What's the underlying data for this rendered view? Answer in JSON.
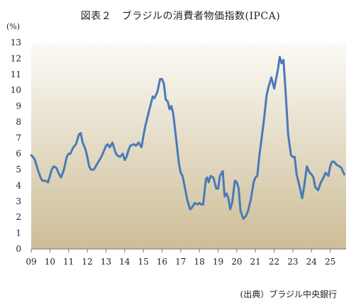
{
  "chart_data": {
    "type": "line",
    "title": "図表２　ブラジルの消費者物価指数(IPCA)",
    "ylabel": "(%)",
    "xlabel": "",
    "ylim": [
      0,
      13
    ],
    "yticks": [
      0,
      1,
      2,
      3,
      4,
      5,
      6,
      7,
      8,
      9,
      10,
      11,
      12,
      13
    ],
    "xticks": [
      "09",
      "10",
      "11",
      "12",
      "13",
      "14",
      "15",
      "16",
      "17",
      "18",
      "19",
      "20",
      "21",
      "22",
      "23",
      "24",
      "25"
    ],
    "grid": false,
    "legend": "none",
    "line_color": "#4a7ab8",
    "background_gradient": [
      "#fbfaf6",
      "#cdbd96"
    ],
    "series": [
      {
        "x": [
          2009.0,
          2009.1,
          2009.2,
          2009.35,
          2009.5,
          2009.6,
          2009.75,
          2009.9,
          2010.0,
          2010.1,
          2010.2,
          2010.35,
          2010.5,
          2010.6,
          2010.75,
          2010.9,
          2011.0,
          2011.1,
          2011.25,
          2011.4,
          2011.55,
          2011.65,
          2011.75,
          2011.9,
          2012.0,
          2012.1,
          2012.2,
          2012.35,
          2012.5,
          2012.6,
          2012.75,
          2012.9,
          2013.0,
          2013.1,
          2013.2,
          2013.35,
          2013.5,
          2013.6,
          2013.75,
          2013.9,
          2014.0,
          2014.1,
          2014.2,
          2014.3,
          2014.5,
          2014.6,
          2014.75,
          2014.9,
          2015.0,
          2015.1,
          2015.2,
          2015.35,
          2015.5,
          2015.6,
          2015.75,
          2015.9,
          2016.0,
          2016.1,
          2016.2,
          2016.3,
          2016.4,
          2016.5,
          2016.6,
          2016.75,
          2016.9,
          2017.0,
          2017.1,
          2017.2,
          2017.35,
          2017.5,
          2017.6,
          2017.75,
          2017.9,
          2018.0,
          2018.1,
          2018.2,
          2018.35,
          2018.42,
          2018.5,
          2018.6,
          2018.75,
          2018.9,
          2019.0,
          2019.1,
          2019.25,
          2019.35,
          2019.45,
          2019.55,
          2019.65,
          2019.75,
          2019.9,
          2020.0,
          2020.1,
          2020.2,
          2020.35,
          2020.5,
          2020.6,
          2020.75,
          2020.9,
          2021.0,
          2021.1,
          2021.2,
          2021.3,
          2021.45,
          2021.6,
          2021.7,
          2021.85,
          2022.0,
          2022.1,
          2022.2,
          2022.3,
          2022.4,
          2022.5,
          2022.6,
          2022.75,
          2022.9,
          2023.0,
          2023.1,
          2023.2,
          2023.35,
          2023.5,
          2023.6,
          2023.75,
          2023.9,
          2024.0,
          2024.1,
          2024.2,
          2024.35,
          2024.5,
          2024.6,
          2024.75,
          2024.9,
          2025.0,
          2025.1,
          2025.2,
          2025.35,
          2025.5,
          2025.6,
          2025.75
        ],
        "y": [
          5.9,
          5.8,
          5.6,
          5.0,
          4.5,
          4.3,
          4.3,
          4.2,
          4.6,
          5.0,
          5.2,
          5.1,
          4.7,
          4.5,
          5.0,
          5.8,
          6.0,
          6.0,
          6.4,
          6.6,
          7.2,
          7.3,
          6.7,
          6.3,
          5.8,
          5.2,
          5.0,
          5.0,
          5.3,
          5.5,
          5.8,
          6.2,
          6.5,
          6.6,
          6.4,
          6.7,
          6.1,
          5.9,
          5.8,
          6.0,
          5.6,
          5.8,
          6.2,
          6.5,
          6.6,
          6.5,
          6.7,
          6.4,
          7.1,
          7.7,
          8.2,
          8.9,
          9.6,
          9.5,
          9.9,
          10.7,
          10.7,
          10.4,
          9.4,
          9.3,
          8.8,
          9.0,
          8.5,
          7.0,
          5.4,
          4.8,
          4.6,
          4.0,
          3.1,
          2.5,
          2.6,
          2.9,
          2.8,
          2.9,
          2.8,
          2.8,
          4.4,
          4.5,
          4.2,
          4.6,
          4.5,
          3.8,
          3.8,
          4.6,
          4.9,
          3.3,
          3.5,
          3.2,
          2.5,
          2.9,
          4.3,
          4.2,
          3.8,
          2.4,
          1.9,
          2.1,
          2.4,
          3.1,
          4.2,
          4.5,
          4.6,
          5.8,
          6.7,
          8.1,
          9.7,
          10.2,
          10.8,
          10.1,
          10.7,
          11.3,
          12.1,
          11.7,
          11.9,
          10.1,
          7.2,
          5.9,
          5.8,
          5.8,
          4.7,
          4.0,
          3.2,
          3.9,
          5.2,
          4.8,
          4.7,
          4.5,
          3.9,
          3.7,
          4.2,
          4.4,
          4.8,
          4.6,
          5.2,
          5.5,
          5.5,
          5.3,
          5.2,
          5.1,
          4.7
        ]
      }
    ]
  },
  "source_note": "(出典）ブラジル中央銀行"
}
